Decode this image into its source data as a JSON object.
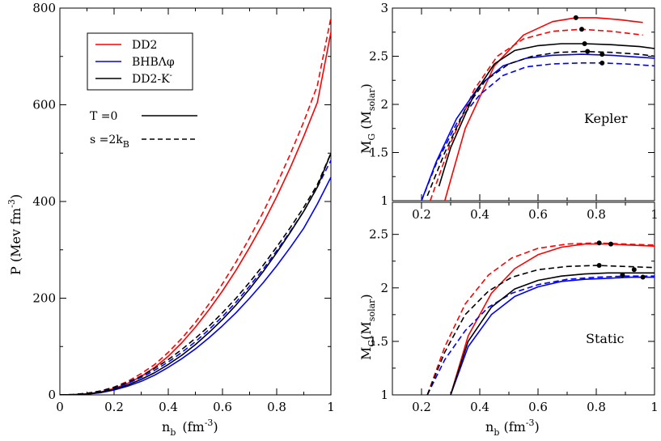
{
  "chart_data": [
    {
      "id": "eos",
      "type": "line",
      "xlabel": "n",
      "xlabel_sub": "b",
      "xlabel_unit": "(fm",
      "xlabel_unit_sup": "-3",
      "xlabel_close": ")",
      "ylabel": "P (Mev fm",
      "ylabel_sup": "-3",
      "ylabel_close": ")",
      "xlim": [
        0,
        1
      ],
      "ylim": [
        0,
        800
      ],
      "xticks": [
        0,
        0.2,
        0.4,
        0.6,
        0.8,
        1
      ],
      "xtick_labels": [
        "0",
        "0.2",
        "0.4",
        "0.6",
        "0.8",
        "1"
      ],
      "yticks": [
        0,
        200,
        400,
        600,
        800
      ],
      "ytick_labels": [
        "0",
        "200",
        "400",
        "600",
        "800"
      ],
      "legend": [
        {
          "label": "DD2",
          "color": "#ff0000"
        },
        {
          "label": "BHBΛφ",
          "color": "#0000ff"
        },
        {
          "label": "DD2-K",
          "sup": "-",
          "color": "#000000"
        }
      ],
      "style_legend": [
        {
          "label": "T =0",
          "dash": "solid"
        },
        {
          "label": "s =2k",
          "sub": "B",
          "dash": "dashed"
        }
      ],
      "series": [
        {
          "name": "DD2 T=0",
          "color": "#ff0000",
          "dash": "solid",
          "x": [
            0,
            0.05,
            0.1,
            0.15,
            0.2,
            0.25,
            0.3,
            0.35,
            0.4,
            0.45,
            0.5,
            0.55,
            0.6,
            0.65,
            0.7,
            0.75,
            0.8,
            0.85,
            0.9,
            0.95,
            1.0
          ],
          "y": [
            0,
            0.4,
            2,
            6,
            13,
            24,
            38,
            57,
            80,
            108,
            140,
            176,
            215,
            258,
            305,
            355,
            410,
            470,
            535,
            605,
            750
          ]
        },
        {
          "name": "DD2 s=2kB",
          "color": "#ff0000",
          "dash": "dashed",
          "x": [
            0,
            0.05,
            0.1,
            0.15,
            0.2,
            0.25,
            0.3,
            0.35,
            0.4,
            0.45,
            0.5,
            0.55,
            0.6,
            0.65,
            0.7,
            0.75,
            0.8,
            0.85,
            0.9,
            0.95,
            1.0
          ],
          "y": [
            0,
            0.8,
            3,
            8,
            16,
            28,
            44,
            63,
            88,
            117,
            150,
            188,
            230,
            275,
            325,
            378,
            435,
            498,
            565,
            640,
            780
          ]
        },
        {
          "name": "BHB T=0",
          "color": "#0000ff",
          "dash": "solid",
          "x": [
            0,
            0.05,
            0.1,
            0.15,
            0.2,
            0.25,
            0.3,
            0.35,
            0.4,
            0.45,
            0.5,
            0.55,
            0.6,
            0.65,
            0.7,
            0.75,
            0.8,
            0.85,
            0.9,
            0.95,
            1.0
          ],
          "y": [
            0,
            0.3,
            1.5,
            4.5,
            10,
            18,
            28,
            41,
            57,
            75,
            95,
            118,
            143,
            170,
            200,
            232,
            267,
            305,
            345,
            395,
            450
          ]
        },
        {
          "name": "BHB s=2kB",
          "color": "#0000ff",
          "dash": "dashed",
          "x": [
            0,
            0.05,
            0.1,
            0.15,
            0.2,
            0.25,
            0.3,
            0.35,
            0.4,
            0.45,
            0.5,
            0.55,
            0.6,
            0.65,
            0.7,
            0.75,
            0.8,
            0.85,
            0.9,
            0.95,
            1.0
          ],
          "y": [
            0,
            0.7,
            2.8,
            7,
            14,
            24,
            36,
            51,
            68,
            88,
            110,
            135,
            162,
            192,
            225,
            260,
            298,
            338,
            380,
            430,
            485
          ]
        },
        {
          "name": "DD2-K T=0",
          "color": "#000000",
          "dash": "solid",
          "x": [
            0,
            0.05,
            0.1,
            0.15,
            0.2,
            0.25,
            0.3,
            0.35,
            0.4,
            0.45,
            0.5,
            0.55,
            0.6,
            0.65,
            0.7,
            0.75,
            0.8,
            0.85,
            0.9,
            0.95,
            1.0
          ],
          "y": [
            0,
            0.35,
            1.8,
            5.2,
            11.5,
            20.5,
            32,
            46,
            63,
            82,
            104,
            129,
            156,
            186,
            219,
            255,
            294,
            336,
            380,
            430,
            500
          ]
        },
        {
          "name": "DD2-K s=2kB",
          "color": "#000000",
          "dash": "dashed",
          "x": [
            0,
            0.05,
            0.1,
            0.15,
            0.2,
            0.25,
            0.3,
            0.35,
            0.4,
            0.45,
            0.5,
            0.55,
            0.6,
            0.65,
            0.7,
            0.75,
            0.8,
            0.85,
            0.9,
            0.95,
            1.0
          ],
          "y": [
            0,
            0.8,
            3.2,
            8,
            15.5,
            26,
            39,
            55,
            73,
            94,
            117,
            142,
            170,
            200,
            233,
            268,
            306,
            346,
            388,
            435,
            500
          ]
        }
      ]
    },
    {
      "id": "kepler",
      "type": "line",
      "annotation": "Kepler",
      "ylabel": "M",
      "ylabel_sub": "G",
      "ylabel_open": " (M",
      "ylabel_sub2": "solar",
      "ylabel_close": ")",
      "xlim": [
        0.1,
        1
      ],
      "ylim": [
        1,
        3
      ],
      "xticks": [
        0.2,
        0.4,
        0.6,
        0.8,
        1
      ],
      "xtick_labels": [
        "0.2",
        "0.4",
        "0.6",
        "0.8",
        "1"
      ],
      "yticks": [
        1,
        1.5,
        2,
        2.5,
        3
      ],
      "ytick_labels": [
        "1",
        "1.5",
        "2",
        "2.5",
        "3"
      ],
      "series": [
        {
          "name": "DD2 T=0",
          "color": "#ff0000",
          "dash": "solid",
          "x": [
            0.28,
            0.35,
            0.45,
            0.55,
            0.65,
            0.73,
            0.8,
            0.88,
            0.96
          ],
          "y": [
            1.0,
            1.75,
            2.4,
            2.72,
            2.86,
            2.9,
            2.9,
            2.88,
            2.85
          ]
        },
        {
          "name": "DD2 s=2kB",
          "color": "#ff0000",
          "dash": "dashed",
          "x": [
            0.23,
            0.3,
            0.38,
            0.46,
            0.55,
            0.65,
            0.75,
            0.85,
            0.96
          ],
          "y": [
            1.0,
            1.6,
            2.15,
            2.5,
            2.68,
            2.76,
            2.78,
            2.76,
            2.72
          ]
        },
        {
          "name": "BHB T=0",
          "color": "#0000ff",
          "dash": "solid",
          "x": [
            0.2,
            0.25,
            0.32,
            0.4,
            0.48,
            0.56,
            0.65,
            0.75,
            0.85,
            1.0
          ],
          "y": [
            1.0,
            1.4,
            1.85,
            2.2,
            2.4,
            2.48,
            2.51,
            2.52,
            2.51,
            2.48
          ]
        },
        {
          "name": "BHB s=2kB",
          "color": "#0000ff",
          "dash": "dashed",
          "x": [
            0.2,
            0.25,
            0.32,
            0.4,
            0.48,
            0.56,
            0.65,
            0.75,
            0.82,
            0.9,
            1.0
          ],
          "y": [
            1.0,
            1.38,
            1.8,
            2.1,
            2.3,
            2.39,
            2.42,
            2.43,
            2.43,
            2.42,
            2.4
          ]
        },
        {
          "name": "DD2-K T=0",
          "color": "#000000",
          "dash": "solid",
          "x": [
            0.26,
            0.3,
            0.38,
            0.45,
            0.52,
            0.6,
            0.68,
            0.76,
            0.85,
            0.95,
            1.0
          ],
          "y": [
            1.15,
            1.55,
            2.1,
            2.42,
            2.56,
            2.61,
            2.63,
            2.63,
            2.62,
            2.6,
            2.58
          ]
        },
        {
          "name": "DD2-K s=2kB",
          "color": "#000000",
          "dash": "dashed",
          "x": [
            0.22,
            0.28,
            0.35,
            0.42,
            0.5,
            0.58,
            0.67,
            0.76,
            0.85,
            0.95,
            1.0
          ],
          "y": [
            1.05,
            1.5,
            1.95,
            2.25,
            2.42,
            2.5,
            2.54,
            2.55,
            2.54,
            2.52,
            2.5
          ]
        }
      ],
      "markers": [
        {
          "x": 0.73,
          "y": 2.9
        },
        {
          "x": 0.75,
          "y": 2.78
        },
        {
          "x": 0.76,
          "y": 2.63
        },
        {
          "x": 0.77,
          "y": 2.55
        },
        {
          "x": 0.82,
          "y": 2.52
        },
        {
          "x": 0.82,
          "y": 2.43
        }
      ]
    },
    {
      "id": "static",
      "type": "line",
      "annotation": "Static",
      "xlabel": "n",
      "xlabel_sub": "b",
      "xlabel_unit": " (fm",
      "xlabel_unit_sup": "-3",
      "xlabel_close": ")",
      "ylabel": "M",
      "ylabel_sub": "G",
      "ylabel_open": "(M",
      "ylabel_sub2": "solar",
      "ylabel_close": ")",
      "xlim": [
        0.1,
        1
      ],
      "ylim": [
        1,
        2.8
      ],
      "xticks": [
        0.2,
        0.4,
        0.6,
        0.8,
        1
      ],
      "xtick_labels": [
        "0.2",
        "0.4",
        "0.6",
        "0.8",
        "1"
      ],
      "yticks": [
        1,
        1.5,
        2,
        2.5
      ],
      "ytick_labels": [
        "1",
        "1.5",
        "2",
        "2.5"
      ],
      "series": [
        {
          "name": "DD2 T=0",
          "color": "#ff0000",
          "dash": "solid",
          "x": [
            0.3,
            0.36,
            0.44,
            0.52,
            0.6,
            0.68,
            0.76,
            0.84,
            0.92,
            1.0
          ],
          "y": [
            1.0,
            1.55,
            1.95,
            2.18,
            2.31,
            2.38,
            2.41,
            2.41,
            2.4,
            2.39
          ]
        },
        {
          "name": "DD2 s=2kB",
          "color": "#ff0000",
          "dash": "dashed",
          "x": [
            0.22,
            0.28,
            0.35,
            0.43,
            0.51,
            0.6,
            0.7,
            0.8,
            0.9,
            1.0
          ],
          "y": [
            1.0,
            1.45,
            1.85,
            2.12,
            2.28,
            2.37,
            2.41,
            2.42,
            2.41,
            2.4
          ]
        },
        {
          "name": "BHB T=0",
          "color": "#0000ff",
          "dash": "solid",
          "x": [
            0.3,
            0.36,
            0.44,
            0.52,
            0.6,
            0.68,
            0.76,
            0.84,
            0.92,
            1.0
          ],
          "y": [
            1.0,
            1.45,
            1.75,
            1.92,
            2.01,
            2.06,
            2.08,
            2.09,
            2.1,
            2.1
          ]
        },
        {
          "name": "BHB s=2kB",
          "color": "#0000ff",
          "dash": "dashed",
          "x": [
            0.22,
            0.28,
            0.35,
            0.43,
            0.51,
            0.6,
            0.7,
            0.8,
            0.9,
            1.0
          ],
          "y": [
            1.0,
            1.33,
            1.6,
            1.82,
            1.95,
            2.03,
            2.08,
            2.1,
            2.11,
            2.11
          ]
        },
        {
          "name": "DD2-K T=0",
          "color": "#000000",
          "dash": "solid",
          "x": [
            0.3,
            0.36,
            0.44,
            0.52,
            0.6,
            0.68,
            0.76,
            0.84,
            0.92,
            1.0
          ],
          "y": [
            1.0,
            1.5,
            1.82,
            1.99,
            2.07,
            2.11,
            2.13,
            2.14,
            2.14,
            2.14
          ]
        },
        {
          "name": "DD2-K s=2kB",
          "color": "#000000",
          "dash": "dashed",
          "x": [
            0.22,
            0.28,
            0.35,
            0.43,
            0.51,
            0.6,
            0.7,
            0.8,
            0.9,
            1.0
          ],
          "y": [
            1.0,
            1.4,
            1.75,
            1.97,
            2.1,
            2.17,
            2.2,
            2.21,
            2.2,
            2.19
          ]
        }
      ],
      "markers": [
        {
          "x": 0.81,
          "y": 2.42
        },
        {
          "x": 0.85,
          "y": 2.41
        },
        {
          "x": 0.81,
          "y": 2.21
        },
        {
          "x": 0.93,
          "y": 2.17
        },
        {
          "x": 0.89,
          "y": 2.12
        },
        {
          "x": 0.96,
          "y": 2.1
        }
      ]
    }
  ]
}
